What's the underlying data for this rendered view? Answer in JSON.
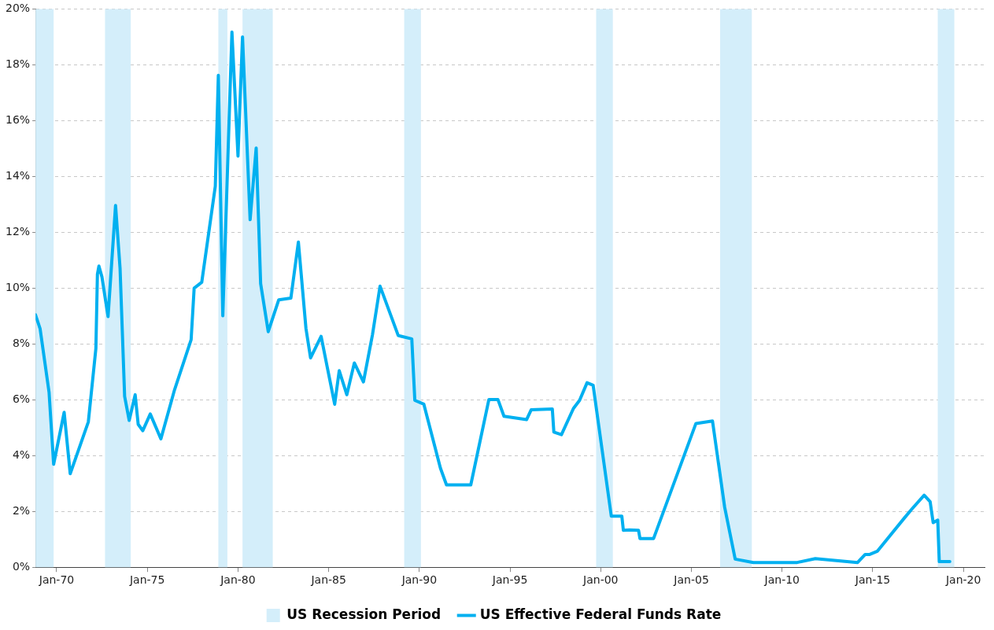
{
  "chart_data": {
    "type": "line",
    "x": [
      "1968-11",
      "1969-02",
      "1969-08",
      "1969-11",
      "1970-06",
      "1970-10",
      "1971-10",
      "1972-03",
      "1972-04",
      "1972-05",
      "1972-07",
      "1972-11",
      "1973-04",
      "1973-07",
      "1973-10",
      "1974-01",
      "1974-05",
      "1974-07",
      "1974-10",
      "1975-03",
      "1975-10",
      "1976-07",
      "1977-06",
      "1977-08",
      "1978-01",
      "1978-10",
      "1978-12",
      "1979-03",
      "1979-09",
      "1980-01",
      "1980-04",
      "1980-09",
      "1981-01",
      "1981-04",
      "1981-09",
      "1982-04",
      "1982-12",
      "1983-05",
      "1983-10",
      "1984-01",
      "1984-08",
      "1984-12",
      "1985-05",
      "1985-08",
      "1986-01",
      "1986-06",
      "1986-12",
      "1987-06",
      "1987-11",
      "1988-11",
      "1989-08",
      "1989-10",
      "1990-04",
      "1991-03",
      "1991-07",
      "1992-11",
      "1993-11",
      "1994-05",
      "1994-09",
      "1995-12",
      "1996-03",
      "1997-05",
      "1997-06",
      "1997-11",
      "1998-07",
      "1998-11",
      "1999-04",
      "1999-08",
      "2000-08",
      "2001-03",
      "2001-04",
      "2001-08",
      "2002-02",
      "2002-03",
      "2002-12",
      "2005-04",
      "2006-03",
      "2006-11",
      "2007-06",
      "2008-06",
      "2010-11",
      "2011-11",
      "2014-03",
      "2014-08",
      "2014-11",
      "2015-04",
      "2016-10",
      "2017-03",
      "2017-11",
      "2018-03",
      "2018-05",
      "2018-08",
      "2018-09",
      "2019-04"
    ],
    "series": [
      {
        "name": "US Effective Federal Funds Rate",
        "color": "#00b0f0",
        "values": [
          9.04,
          8.55,
          6.27,
          3.69,
          5.55,
          3.35,
          5.21,
          7.84,
          10.5,
          10.79,
          10.4,
          8.98,
          12.96,
          10.7,
          6.12,
          5.26,
          6.18,
          5.12,
          4.89,
          5.49,
          4.6,
          6.35,
          8.15,
          10.0,
          10.21,
          13.65,
          17.62,
          9.01,
          19.17,
          14.73,
          19.0,
          12.45,
          15.02,
          10.16,
          8.44,
          9.58,
          9.64,
          11.65,
          8.55,
          7.5,
          8.27,
          7.18,
          5.84,
          7.04,
          6.18,
          7.32,
          6.64,
          8.33,
          10.07,
          8.3,
          8.18,
          5.98,
          5.84,
          3.55,
          2.95,
          2.95,
          6.01,
          6.01,
          5.41,
          5.29,
          5.64,
          5.67,
          4.84,
          4.75,
          5.69,
          5.98,
          6.61,
          6.52,
          1.83,
          1.83,
          1.32,
          1.34,
          1.32,
          1.03,
          1.03,
          5.15,
          5.24,
          2.15,
          0.29,
          0.17,
          0.17,
          0.31,
          0.17,
          0.46,
          0.46,
          0.57,
          1.77,
          2.09,
          2.58,
          2.35,
          1.6,
          1.69,
          0.2,
          0.2
        ]
      }
    ],
    "bands": [
      {
        "axis": "x",
        "from": "1968-11",
        "to": "1969-11",
        "label": "US Recession Period",
        "color": "#d4eefa"
      },
      {
        "axis": "x",
        "from": "1972-09",
        "to": "1974-02",
        "color": "#d4eefa"
      },
      {
        "axis": "x",
        "from": "1978-12",
        "to": "1979-06",
        "color": "#d4eefa"
      },
      {
        "axis": "x",
        "from": "1980-04",
        "to": "1981-12",
        "color": "#d4eefa"
      },
      {
        "axis": "x",
        "from": "1989-03",
        "to": "1990-02",
        "color": "#d4eefa"
      },
      {
        "axis": "x",
        "from": "1999-10",
        "to": "2000-09",
        "color": "#d4eefa"
      },
      {
        "axis": "x",
        "from": "2006-08",
        "to": "2008-05",
        "color": "#d4eefa"
      },
      {
        "axis": "x",
        "from": "2018-08",
        "to": "2019-07",
        "color": "#d4eefa"
      }
    ],
    "xlim": [
      "1968-11",
      "2021-03"
    ],
    "xticks": [
      {
        "value": "1970-01",
        "label": "Jan-70"
      },
      {
        "value": "1975-01",
        "label": "Jan-75"
      },
      {
        "value": "1980-01",
        "label": "Jan-80"
      },
      {
        "value": "1985-01",
        "label": "Jan-85"
      },
      {
        "value": "1990-01",
        "label": "Jan-90"
      },
      {
        "value": "1995-01",
        "label": "Jan-95"
      },
      {
        "value": "2000-01",
        "label": "Jan-00"
      },
      {
        "value": "2005-01",
        "label": "Jan-05"
      },
      {
        "value": "2010-01",
        "label": "Jan-10"
      },
      {
        "value": "2015-01",
        "label": "Jan-15"
      },
      {
        "value": "2020-01",
        "label": "Jan-20"
      }
    ],
    "ylim": [
      0,
      20
    ],
    "yticks": [
      {
        "value": 0,
        "label": "0%"
      },
      {
        "value": 2,
        "label": "2%"
      },
      {
        "value": 4,
        "label": "4%"
      },
      {
        "value": 6,
        "label": "6%"
      },
      {
        "value": 8,
        "label": "8%"
      },
      {
        "value": 10,
        "label": "10%"
      },
      {
        "value": 12,
        "label": "12%"
      },
      {
        "value": 14,
        "label": "14%"
      },
      {
        "value": 16,
        "label": "16%"
      },
      {
        "value": 18,
        "label": "18%"
      },
      {
        "value": 20,
        "label": "20%"
      }
    ],
    "grid": "y",
    "legend": "bottom",
    "marker": "none",
    "line_style": "solid"
  }
}
